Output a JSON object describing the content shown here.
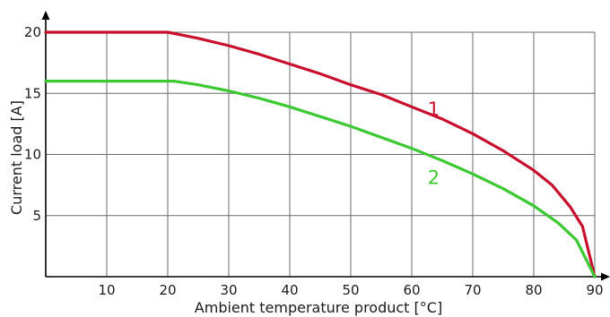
{
  "chart_data": {
    "type": "line",
    "title": "",
    "xlabel": "Ambient temperature product [°C]",
    "ylabel": "Current load [A]",
    "xlim": [
      0,
      90
    ],
    "ylim": [
      0,
      20
    ],
    "x_ticks": [
      "10",
      "20",
      "30",
      "40",
      "50",
      "60",
      "70",
      "80",
      "90"
    ],
    "y_ticks": [
      "5",
      "10",
      "15",
      "20"
    ],
    "grid": true,
    "series": [
      {
        "name": "1",
        "color": "#c8102e",
        "points": [
          [
            0,
            20
          ],
          [
            20,
            20
          ],
          [
            22,
            19.8
          ],
          [
            25,
            19.5
          ],
          [
            30,
            18.9
          ],
          [
            35,
            18.2
          ],
          [
            40,
            17.4
          ],
          [
            45,
            16.6
          ],
          [
            50,
            15.7
          ],
          [
            55,
            14.9
          ],
          [
            60,
            13.9
          ],
          [
            65,
            12.9
          ],
          [
            70,
            11.7
          ],
          [
            75,
            10.3
          ],
          [
            80,
            8.7
          ],
          [
            83,
            7.5
          ],
          [
            86,
            5.7
          ],
          [
            88,
            4.1
          ],
          [
            90,
            0
          ]
        ]
      },
      {
        "name": "2",
        "color": "#3cc832",
        "points": [
          [
            0,
            16
          ],
          [
            21,
            16
          ],
          [
            25,
            15.7
          ],
          [
            30,
            15.2
          ],
          [
            35,
            14.6
          ],
          [
            40,
            13.9
          ],
          [
            45,
            13.1
          ],
          [
            50,
            12.3
          ],
          [
            55,
            11.4
          ],
          [
            60,
            10.5
          ],
          [
            65,
            9.5
          ],
          [
            70,
            8.4
          ],
          [
            75,
            7.2
          ],
          [
            80,
            5.8
          ],
          [
            84,
            4.4
          ],
          [
            87,
            3
          ],
          [
            90,
            0
          ]
        ]
      }
    ]
  }
}
